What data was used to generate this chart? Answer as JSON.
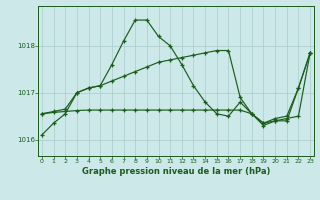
{
  "background_color": "#cce8e8",
  "grid_color": "#aacccc",
  "line_color": "#1a5c1a",
  "x_hours": [
    0,
    1,
    2,
    3,
    4,
    5,
    6,
    7,
    8,
    9,
    10,
    11,
    12,
    13,
    14,
    15,
    16,
    17,
    18,
    19,
    20,
    21,
    22,
    23
  ],
  "line1": [
    1016.1,
    1016.35,
    1016.55,
    1017.0,
    1017.1,
    1017.15,
    1017.6,
    1018.1,
    1018.55,
    1018.55,
    1018.2,
    1018.0,
    1017.6,
    1017.15,
    1016.8,
    1016.55,
    1016.5,
    1016.8,
    1016.55,
    1016.3,
    1016.4,
    1016.4,
    1017.1,
    1017.85
  ],
  "line2": [
    1016.55,
    1016.58,
    1016.6,
    1016.62,
    1016.63,
    1016.63,
    1016.63,
    1016.63,
    1016.63,
    1016.63,
    1016.63,
    1016.63,
    1016.63,
    1016.63,
    1016.63,
    1016.63,
    1016.63,
    1016.63,
    1016.55,
    1016.35,
    1016.4,
    1016.45,
    1016.5,
    1017.85
  ],
  "line3": [
    1016.55,
    1016.6,
    1016.65,
    1017.0,
    1017.1,
    1017.15,
    1017.25,
    1017.35,
    1017.45,
    1017.55,
    1017.65,
    1017.7,
    1017.75,
    1017.8,
    1017.85,
    1017.9,
    1017.9,
    1016.9,
    1016.55,
    1016.35,
    1016.45,
    1016.5,
    1017.1,
    1017.85
  ],
  "ylim_min": 1015.65,
  "ylim_max": 1018.85,
  "yticks": [
    1016,
    1017,
    1018
  ],
  "xlim_min": -0.3,
  "xlim_max": 23.3,
  "xlabel": "Graphe pression niveau de la mer (hPa)"
}
